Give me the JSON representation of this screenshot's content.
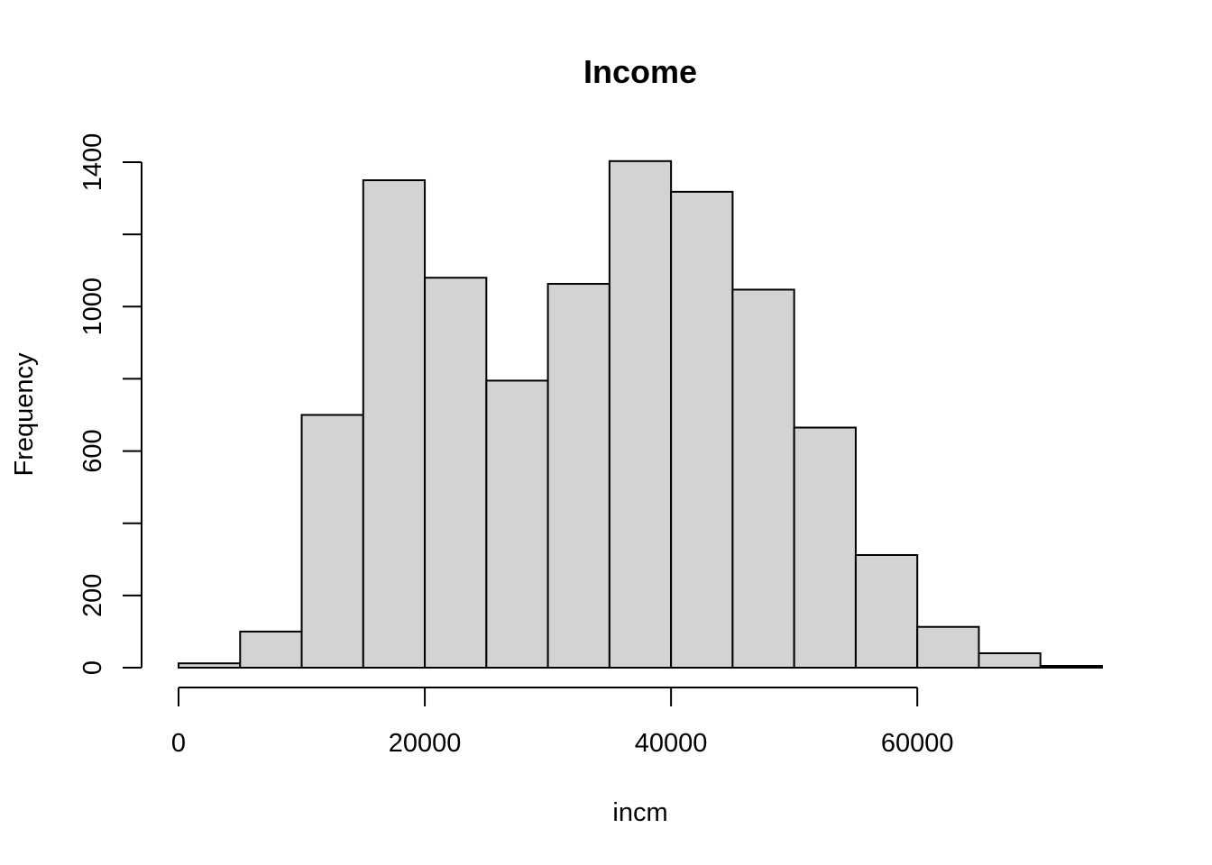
{
  "chart_data": {
    "type": "bar",
    "title": "Income",
    "xlabel": "incm",
    "ylabel": "Frequency",
    "bin_edges": [
      0,
      5000,
      10000,
      15000,
      20000,
      25000,
      30000,
      35000,
      40000,
      45000,
      50000,
      55000,
      60000,
      65000,
      70000,
      75000
    ],
    "values": [
      12,
      100,
      700,
      1350,
      1080,
      795,
      1063,
      1403,
      1318,
      1047,
      665,
      312,
      113,
      40,
      5
    ],
    "xlim": [
      0,
      75000
    ],
    "ylim": [
      0,
      1400
    ],
    "x_ticks": [
      0,
      20000,
      40000,
      60000
    ],
    "x_tick_labels": [
      "0",
      "20000",
      "40000",
      "60000"
    ],
    "y_ticks": [
      0,
      200,
      400,
      600,
      800,
      1000,
      1200,
      1400
    ],
    "y_tick_labels": [
      "0",
      "200",
      "",
      "600",
      "",
      "1000",
      "",
      "1400"
    ],
    "grid": false,
    "bar_color": "#d3d3d3",
    "edge_color": "#000000"
  }
}
